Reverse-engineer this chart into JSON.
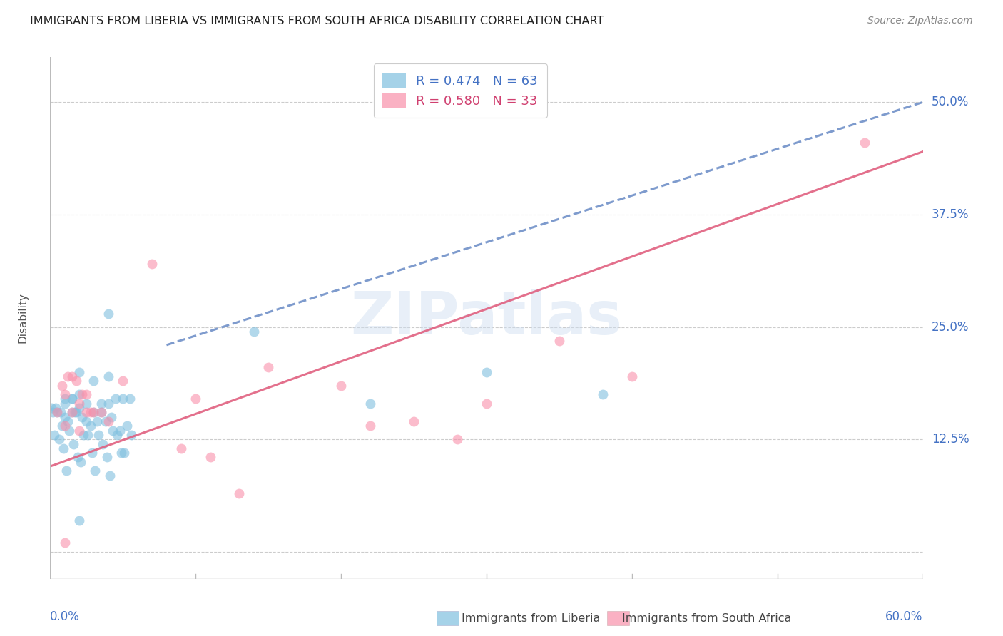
{
  "title": "IMMIGRANTS FROM LIBERIA VS IMMIGRANTS FROM SOUTH AFRICA DISABILITY CORRELATION CHART",
  "source": "Source: ZipAtlas.com",
  "ylabel": "Disability",
  "watermark": "ZIPatlas",
  "xlim": [
    0.0,
    0.6
  ],
  "ylim": [
    -0.03,
    0.55
  ],
  "yticks": [
    0.0,
    0.125,
    0.25,
    0.375,
    0.5
  ],
  "ytick_labels": [
    "",
    "12.5%",
    "25.0%",
    "37.5%",
    "50.0%"
  ],
  "grid_color": "#cccccc",
  "background_color": "#ffffff",
  "liberia_color": "#7fbfdf",
  "south_africa_color": "#f990aa",
  "liberia_line_color": "#7090c8",
  "south_africa_line_color": "#e06080",
  "liberia_R": 0.474,
  "liberia_N": 63,
  "south_africa_R": 0.58,
  "south_africa_N": 33,
  "liberia_scatter_x": [
    0.005,
    0.007,
    0.008,
    0.009,
    0.01,
    0.01,
    0.01,
    0.011,
    0.012,
    0.013,
    0.015,
    0.015,
    0.015,
    0.016,
    0.017,
    0.018,
    0.019,
    0.02,
    0.02,
    0.02,
    0.021,
    0.022,
    0.023,
    0.025,
    0.025,
    0.026,
    0.028,
    0.029,
    0.03,
    0.03,
    0.031,
    0.032,
    0.033,
    0.035,
    0.035,
    0.036,
    0.038,
    0.039,
    0.04,
    0.04,
    0.041,
    0.042,
    0.043,
    0.045,
    0.046,
    0.048,
    0.049,
    0.05,
    0.051,
    0.053,
    0.055,
    0.056,
    0.003,
    0.006,
    0.004,
    0.002,
    0.001,
    0.14,
    0.22,
    0.3,
    0.38,
    0.04,
    0.02
  ],
  "liberia_scatter_y": [
    0.155,
    0.155,
    0.14,
    0.115,
    0.15,
    0.165,
    0.17,
    0.09,
    0.145,
    0.135,
    0.155,
    0.17,
    0.17,
    0.12,
    0.155,
    0.155,
    0.105,
    0.175,
    0.16,
    0.2,
    0.1,
    0.15,
    0.13,
    0.145,
    0.165,
    0.13,
    0.14,
    0.11,
    0.155,
    0.19,
    0.09,
    0.145,
    0.13,
    0.155,
    0.165,
    0.12,
    0.145,
    0.105,
    0.165,
    0.195,
    0.085,
    0.15,
    0.135,
    0.17,
    0.13,
    0.135,
    0.11,
    0.17,
    0.11,
    0.14,
    0.17,
    0.13,
    0.13,
    0.125,
    0.16,
    0.155,
    0.16,
    0.245,
    0.165,
    0.2,
    0.175,
    0.265,
    0.035
  ],
  "south_africa_scatter_x": [
    0.005,
    0.008,
    0.01,
    0.01,
    0.012,
    0.015,
    0.015,
    0.018,
    0.02,
    0.02,
    0.022,
    0.025,
    0.025,
    0.028,
    0.03,
    0.035,
    0.04,
    0.05,
    0.07,
    0.09,
    0.1,
    0.11,
    0.13,
    0.15,
    0.2,
    0.22,
    0.25,
    0.28,
    0.3,
    0.35,
    0.4,
    0.01,
    0.56
  ],
  "south_africa_scatter_y": [
    0.155,
    0.185,
    0.175,
    0.14,
    0.195,
    0.155,
    0.195,
    0.19,
    0.135,
    0.165,
    0.175,
    0.155,
    0.175,
    0.155,
    0.155,
    0.155,
    0.145,
    0.19,
    0.32,
    0.115,
    0.17,
    0.105,
    0.065,
    0.205,
    0.185,
    0.14,
    0.145,
    0.125,
    0.165,
    0.235,
    0.195,
    0.01,
    0.455
  ],
  "liberia_line_x0": 0.08,
  "liberia_line_y0": 0.23,
  "liberia_line_x1": 0.6,
  "liberia_line_y1": 0.5,
  "south_africa_line_x0": 0.0,
  "south_africa_line_y0": 0.095,
  "south_africa_line_x1": 0.6,
  "south_africa_line_y1": 0.445
}
